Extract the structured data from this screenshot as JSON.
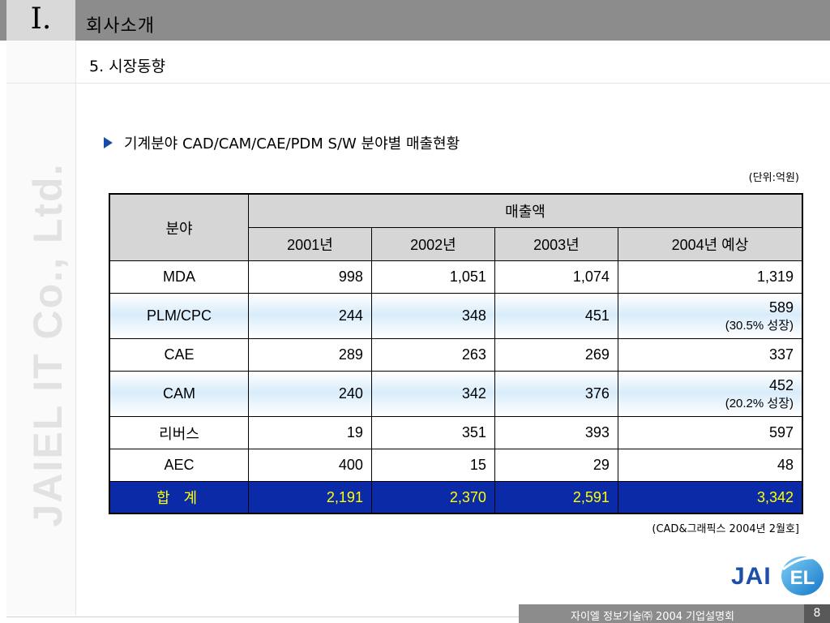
{
  "header": {
    "section_number": "I.",
    "title": "회사소개"
  },
  "watermark": "JAIEL IT Co., Ltd.",
  "section_title": "5.  시장동향",
  "bullet": "기계분야 CAD/CAM/CAE/PDM S/W 분야별 매출현황",
  "unit_note": "(단위:억원)",
  "table": {
    "header_category": "분야",
    "header_sales": "매출액",
    "years": [
      "2001년",
      "2002년",
      "2003년",
      "2004년 예상"
    ],
    "rows": [
      {
        "category": "MDA",
        "values": [
          "998",
          "1,051",
          "1,074",
          "1,319"
        ],
        "note": ""
      },
      {
        "category": "PLM/CPC",
        "values": [
          "244",
          "348",
          "451",
          "589"
        ],
        "note": "(30.5% 성장)"
      },
      {
        "category": "CAE",
        "values": [
          "289",
          "263",
          "269",
          "337"
        ],
        "note": ""
      },
      {
        "category": "CAM",
        "values": [
          "240",
          "342",
          "376",
          "452"
        ],
        "note": "(20.2% 성장)"
      },
      {
        "category": "리버스",
        "values": [
          "19",
          "351",
          "393",
          "597"
        ],
        "note": ""
      },
      {
        "category": "AEC",
        "values": [
          "400",
          "15",
          "29",
          "48"
        ],
        "note": ""
      }
    ],
    "total": {
      "category": "합 계",
      "values": [
        "2,191",
        "2,370",
        "2,591",
        "3,342"
      ]
    }
  },
  "source_note": "(CAD&그래픽스 2004년 2월호]",
  "logo": {
    "text": "JAI",
    "circle_text": "EL"
  },
  "footer": {
    "text": "자이엘 정보기술㈜   2004 기업설명회",
    "page": "8"
  },
  "colors": {
    "total_bg": "#0a2aa8",
    "total_text": "#ffff00",
    "bullet": "#1a4ba8",
    "logo": "#1e4fa8"
  }
}
